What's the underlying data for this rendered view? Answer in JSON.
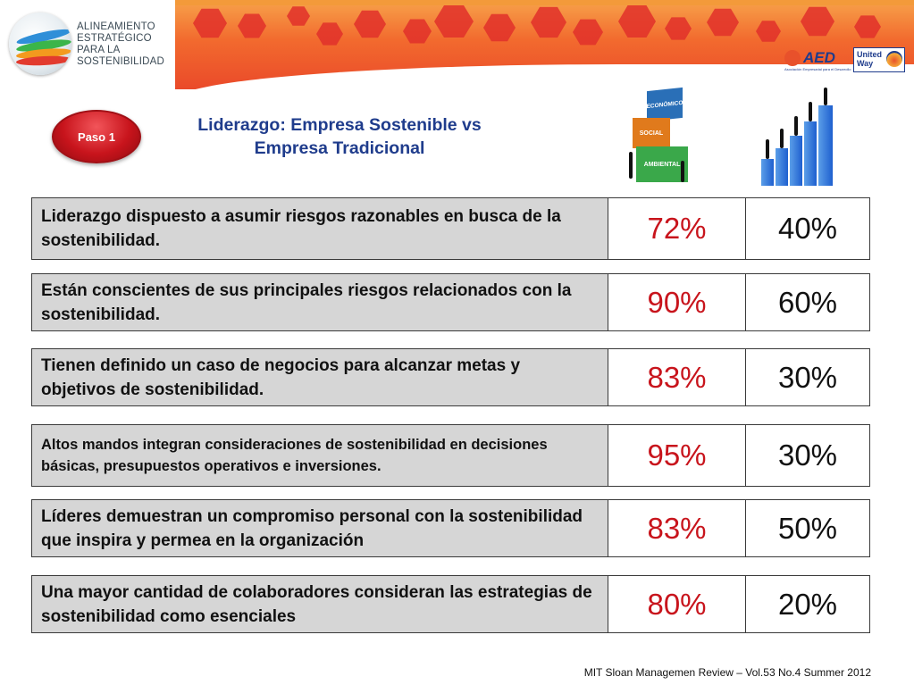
{
  "logo": {
    "lines": [
      "ALINEAMIENTO",
      "ESTRATÉGICO",
      "PARA LA",
      "SOSTENIBILIDAD"
    ]
  },
  "partners": {
    "aed": {
      "name": "AED",
      "subtitle": "Asociación Empresarial para el Desarrollo"
    },
    "united_way": {
      "name_line1": "United",
      "name_line2": "Way"
    }
  },
  "step_button": {
    "label": "Paso 1"
  },
  "title": {
    "line1": "Liderazgo:  Empresa Sostenible vs",
    "line2": "Empresa Tradicional"
  },
  "illustration_cubes": {
    "labels": [
      "ECONÓMICO",
      "SOCIAL",
      "AMBIENTAL"
    ]
  },
  "rows": [
    {
      "label": "Liderazgo dispuesto a asumir riesgos razonables en busca de la sostenibilidad.",
      "sostenible": "72%",
      "tradicional": "40%"
    },
    {
      "label": "Están conscientes de sus principales riesgos relacionados con la sostenibilidad.",
      "sostenible": "90%",
      "tradicional": "60%"
    },
    {
      "label": "Tienen definido un caso de negocios para alcanzar metas y objetivos de sostenibilidad.",
      "sostenible": "83%",
      "tradicional": "30%"
    },
    {
      "label": "Altos mandos integran consideraciones de sostenibilidad en decisiones básicas, presupuestos operativos e inversiones.",
      "sostenible": "95%",
      "tradicional": "30%"
    },
    {
      "label": "Líderes demuestran un compromiso personal con la sostenibilidad que inspira y permea en la organización",
      "sostenible": "83%",
      "tradicional": "50%"
    },
    {
      "label": "Una mayor cantidad de colaboradores consideran las estrategias de sostenibilidad como esenciales",
      "sostenible": "80%",
      "tradicional": "20%"
    }
  ],
  "source": "MIT Sloan Managemen Review – Vol.53 No.4 Summer 2012",
  "colors": {
    "accent_red": "#c8141c",
    "title_blue": "#1f3c8c",
    "row_gray": "#d6d6d6"
  }
}
